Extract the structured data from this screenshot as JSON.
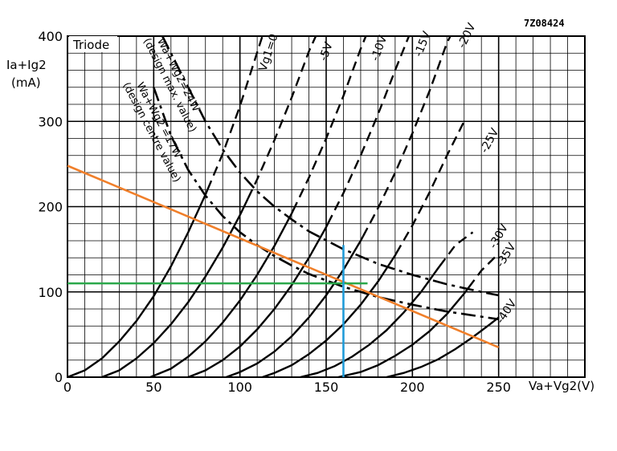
{
  "figure_code": "7Z08424",
  "chart_data": {
    "type": "line",
    "panel_label": "Triode",
    "ylabel": "Ia+Ig2",
    "yunit": "(mA)",
    "xlabel": "Va+Vg2(V)",
    "xlim": [
      0,
      250
    ],
    "ylim": [
      0,
      400
    ],
    "xticks": [
      0,
      50,
      100,
      150,
      200,
      250
    ],
    "yticks": [
      0,
      100,
      200,
      300,
      400
    ],
    "grid": true,
    "series": [
      {
        "name": "Vg1=0",
        "style": "solid-dashed",
        "points": [
          [
            0,
            0
          ],
          [
            10,
            8
          ],
          [
            20,
            22
          ],
          [
            30,
            42
          ],
          [
            40,
            66
          ],
          [
            50,
            95
          ],
          [
            60,
            130
          ],
          [
            70,
            170
          ],
          [
            80,
            214
          ],
          [
            90,
            262
          ],
          [
            100,
            318
          ],
          [
            113,
            400
          ]
        ]
      },
      {
        "name": "-5V",
        "style": "solid-dashed",
        "points": [
          [
            20,
            0
          ],
          [
            30,
            8
          ],
          [
            40,
            22
          ],
          [
            50,
            40
          ],
          [
            60,
            62
          ],
          [
            70,
            88
          ],
          [
            80,
            118
          ],
          [
            90,
            152
          ],
          [
            100,
            190
          ],
          [
            110,
            232
          ],
          [
            120,
            278
          ],
          [
            130,
            328
          ],
          [
            140,
            382
          ],
          [
            144,
            400
          ]
        ]
      },
      {
        "name": "-10V",
        "style": "solid-dashed",
        "points": [
          [
            48,
            0
          ],
          [
            60,
            10
          ],
          [
            70,
            24
          ],
          [
            80,
            42
          ],
          [
            90,
            64
          ],
          [
            100,
            90
          ],
          [
            110,
            120
          ],
          [
            120,
            154
          ],
          [
            130,
            192
          ],
          [
            140,
            234
          ],
          [
            150,
            280
          ],
          [
            160,
            330
          ],
          [
            170,
            385
          ],
          [
            173,
            400
          ]
        ]
      },
      {
        "name": "-15V",
        "style": "solid-dashed",
        "points": [
          [
            70,
            0
          ],
          [
            80,
            8
          ],
          [
            90,
            20
          ],
          [
            100,
            36
          ],
          [
            110,
            56
          ],
          [
            120,
            80
          ],
          [
            130,
            108
          ],
          [
            140,
            140
          ],
          [
            150,
            176
          ],
          [
            160,
            216
          ],
          [
            170,
            260
          ],
          [
            180,
            308
          ],
          [
            190,
            360
          ],
          [
            198,
            400
          ]
        ]
      },
      {
        "name": "-20V",
        "style": "solid-dashed",
        "points": [
          [
            92,
            0
          ],
          [
            100,
            6
          ],
          [
            110,
            16
          ],
          [
            120,
            30
          ],
          [
            130,
            48
          ],
          [
            140,
            70
          ],
          [
            150,
            96
          ],
          [
            160,
            126
          ],
          [
            170,
            160
          ],
          [
            180,
            198
          ],
          [
            190,
            240
          ],
          [
            200,
            286
          ],
          [
            210,
            336
          ],
          [
            220,
            392
          ],
          [
            222,
            400
          ]
        ]
      },
      {
        "name": "-25V",
        "style": "solid-dashed",
        "points": [
          [
            113,
            0
          ],
          [
            120,
            5
          ],
          [
            130,
            14
          ],
          [
            140,
            27
          ],
          [
            150,
            43
          ],
          [
            160,
            62
          ],
          [
            170,
            85
          ],
          [
            180,
            112
          ],
          [
            190,
            143
          ],
          [
            200,
            178
          ],
          [
            210,
            217
          ],
          [
            220,
            260
          ],
          [
            230,
            300
          ]
        ]
      },
      {
        "name": "-30V",
        "style": "solid-dashed",
        "points": [
          [
            135,
            0
          ],
          [
            145,
            5
          ],
          [
            155,
            13
          ],
          [
            165,
            24
          ],
          [
            175,
            38
          ],
          [
            185,
            55
          ],
          [
            195,
            76
          ],
          [
            205,
            100
          ],
          [
            215,
            128
          ],
          [
            225,
            155
          ],
          [
            235,
            170
          ]
        ]
      },
      {
        "name": "-35V",
        "style": "solid-dashed",
        "points": [
          [
            157,
            0
          ],
          [
            170,
            6
          ],
          [
            180,
            14
          ],
          [
            190,
            25
          ],
          [
            200,
            38
          ],
          [
            210,
            54
          ],
          [
            220,
            74
          ],
          [
            230,
            98
          ],
          [
            240,
            125
          ],
          [
            250,
            145
          ]
        ]
      },
      {
        "name": "-40V",
        "style": "solid-dashed",
        "points": [
          [
            185,
            0
          ],
          [
            195,
            5
          ],
          [
            205,
            12
          ],
          [
            215,
            21
          ],
          [
            225,
            33
          ],
          [
            235,
            47
          ],
          [
            245,
            62
          ],
          [
            250,
            70
          ]
        ]
      }
    ],
    "dissipation_curves": [
      {
        "label": "Wa+Wg2=24W",
        "note": "(design max. value)",
        "points": [
          [
            55,
            400
          ],
          [
            60,
            380
          ],
          [
            70,
            340
          ],
          [
            80,
            300
          ],
          [
            90,
            267
          ],
          [
            100,
            240
          ],
          [
            110,
            218
          ],
          [
            120,
            200
          ],
          [
            130,
            185
          ],
          [
            140,
            171
          ],
          [
            160,
            150
          ],
          [
            180,
            133
          ],
          [
            200,
            120
          ],
          [
            220,
            109
          ],
          [
            240,
            100
          ],
          [
            250,
            96
          ]
        ]
      },
      {
        "label": "Wa+Wg2 =17W",
        "note": "(design centre value)",
        "points": [
          [
            50,
            340
          ],
          [
            60,
            283
          ],
          [
            70,
            243
          ],
          [
            80,
            213
          ],
          [
            90,
            189
          ],
          [
            100,
            170
          ],
          [
            110,
            155
          ],
          [
            120,
            142
          ],
          [
            130,
            131
          ],
          [
            140,
            121
          ],
          [
            160,
            106
          ],
          [
            180,
            94
          ],
          [
            200,
            85
          ],
          [
            220,
            77
          ],
          [
            240,
            71
          ],
          [
            250,
            68
          ]
        ]
      }
    ],
    "load_line": {
      "color": "#f07f2a",
      "points": [
        [
          0,
          248
        ],
        [
          250,
          35
        ]
      ]
    },
    "reference_lines": [
      {
        "color": "#2aa84a",
        "orientation": "horizontal",
        "y": 110,
        "x_range": [
          0,
          174
        ]
      },
      {
        "color": "#1f9bd8",
        "orientation": "vertical",
        "x": 160,
        "y_range": [
          0,
          155
        ]
      }
    ]
  }
}
